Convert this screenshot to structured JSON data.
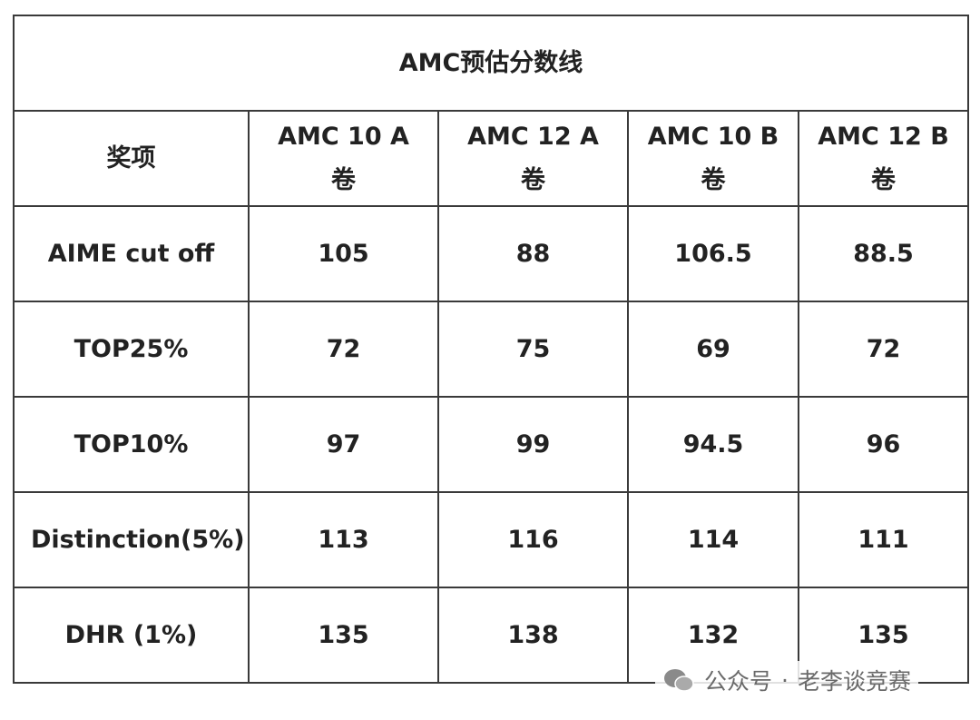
{
  "table": {
    "title": "AMC预估分数线",
    "header": [
      "奖项",
      "AMC 10 A卷",
      "AMC 12 A卷",
      "AMC 10 B卷",
      "AMC 12 B卷"
    ],
    "rows": [
      [
        "AIME cut off",
        "105",
        "88",
        "106.5",
        "88.5"
      ],
      [
        "TOP25%",
        "72",
        "75",
        "69",
        "72"
      ],
      [
        "TOP10%",
        "97",
        "99",
        "94.5",
        "96"
      ],
      [
        "Distinction(5%)",
        "113",
        "116",
        "114",
        "111"
      ],
      [
        "DHR (1%)",
        "135",
        "138",
        "132",
        "135"
      ]
    ]
  },
  "watermark": {
    "account_type": "公众号",
    "separator": "·",
    "account_name": "老李谈竞赛"
  }
}
